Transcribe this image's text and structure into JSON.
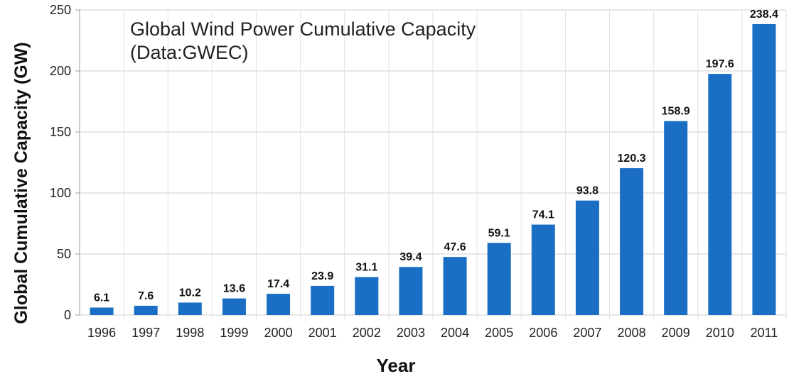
{
  "chart_data": {
    "type": "bar",
    "title": "Global Wind Power Cumulative Capacity",
    "subtitle": "(Data:GWEC)",
    "xlabel": "Year",
    "ylabel": "Global Cumulative Capacity (GW)",
    "ylim": [
      0,
      250
    ],
    "yticks": [
      0,
      50,
      100,
      150,
      200,
      250
    ],
    "grid": true,
    "legend": "none",
    "bar_color": "#1a6fc4",
    "grid_color": "#cfcfcf",
    "categories": [
      "1996",
      "1997",
      "1998",
      "1999",
      "2000",
      "2001",
      "2002",
      "2003",
      "2004",
      "2005",
      "2006",
      "2007",
      "2008",
      "2009",
      "2010",
      "2011"
    ],
    "values": [
      6.1,
      7.6,
      10.2,
      13.6,
      17.4,
      23.9,
      31.1,
      39.4,
      47.6,
      59.1,
      74.1,
      93.8,
      120.3,
      158.9,
      197.6,
      238.4
    ],
    "data_labels": [
      "6.1",
      "7.6",
      "10.2",
      "13.6",
      "17.4",
      "23.9",
      "31.1",
      "39.4",
      "47.6",
      "59.1",
      "74.1",
      "93.8",
      "120.3",
      "158.9",
      "197.6",
      "238.4"
    ]
  }
}
